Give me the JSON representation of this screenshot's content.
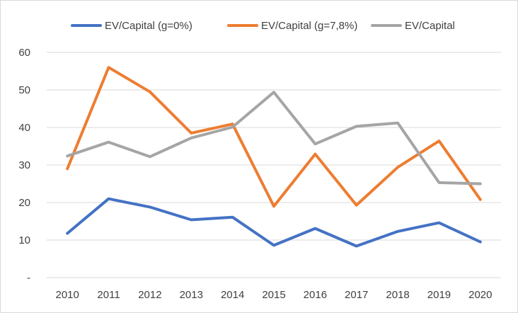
{
  "chart_data": {
    "type": "line",
    "title": "",
    "xlabel": "",
    "ylabel": "",
    "categories": [
      "2010",
      "2011",
      "2012",
      "2013",
      "2014",
      "2015",
      "2016",
      "2017",
      "2018",
      "2019",
      "2020"
    ],
    "ylim": [
      0,
      60
    ],
    "yticks": [
      0,
      10,
      20,
      30,
      40,
      50,
      60
    ],
    "ytick_labels": [
      "-",
      "10",
      "20",
      "30",
      "40",
      "50",
      "60"
    ],
    "grid": "horizontal",
    "legend_position": "top",
    "series": [
      {
        "name": "EV/Capital (g=0%)",
        "color": "#4472C4",
        "values": [
          11.8,
          21.0,
          18.8,
          15.4,
          16.1,
          8.6,
          13.1,
          8.4,
          12.3,
          14.6,
          9.5
        ]
      },
      {
        "name": "EV/Capital (g=7,8%)",
        "color": "#ED7D31",
        "values": [
          29.0,
          56.0,
          49.5,
          38.5,
          40.9,
          19.0,
          32.9,
          19.3,
          29.4,
          36.4,
          20.8
        ]
      },
      {
        "name": "EV/Capital",
        "color": "#A5A5A5",
        "values": [
          32.4,
          36.1,
          32.2,
          37.2,
          40.1,
          49.4,
          35.6,
          40.3,
          41.2,
          25.3,
          25.0
        ]
      }
    ]
  }
}
